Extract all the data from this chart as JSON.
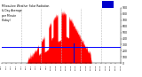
{
  "title": "Milwaukee Weather Solar Radiation & Day Average per Minute (Today)",
  "bg_color": "#ffffff",
  "plot_bg": "#ffffff",
  "grid_color": "#bbbbbb",
  "bar_color": "#ff0000",
  "avg_line_color": "#0000ff",
  "marker_line_color": "#0000cc",
  "legend_red": "#ff0000",
  "legend_blue": "#0000cc",
  "ylim": [
    0,
    900
  ],
  "xlim": [
    0,
    1440
  ],
  "avg_value": 270,
  "current_x": 870,
  "ytick_vals": [
    0,
    100,
    200,
    300,
    400,
    500,
    600,
    700,
    800,
    900
  ],
  "num_points": 1440,
  "peak_minute": 730,
  "peak_value": 820,
  "sigma": 190,
  "start_minute": 310,
  "end_minute": 1090
}
